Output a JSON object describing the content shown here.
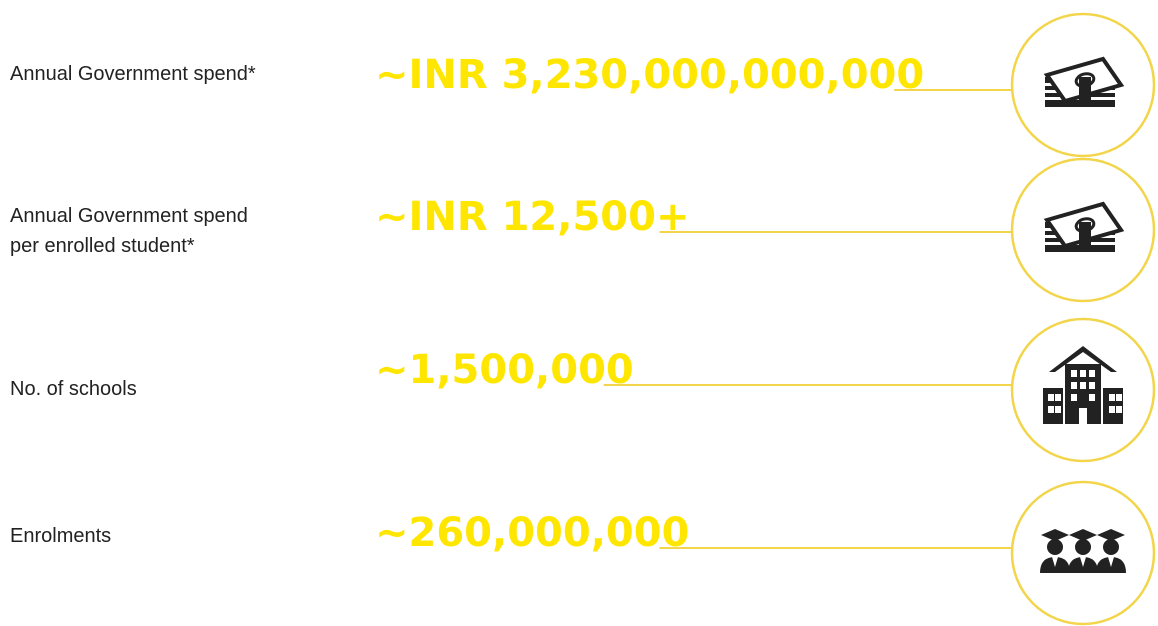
{
  "rows": [
    {
      "label": [
        "Annual Government spend*"
      ],
      "value": "~INR 3,230,000,000,000"
    },
    {
      "label": [
        "Annual Government spend",
        "per enrolled student*"
      ],
      "value": "~INR 12,500+"
    },
    {
      "label": [
        "No. of schools"
      ],
      "value": "~1,500,000"
    },
    {
      "label": [
        "Enrolments"
      ],
      "value": "~260,000,000"
    }
  ]
}
